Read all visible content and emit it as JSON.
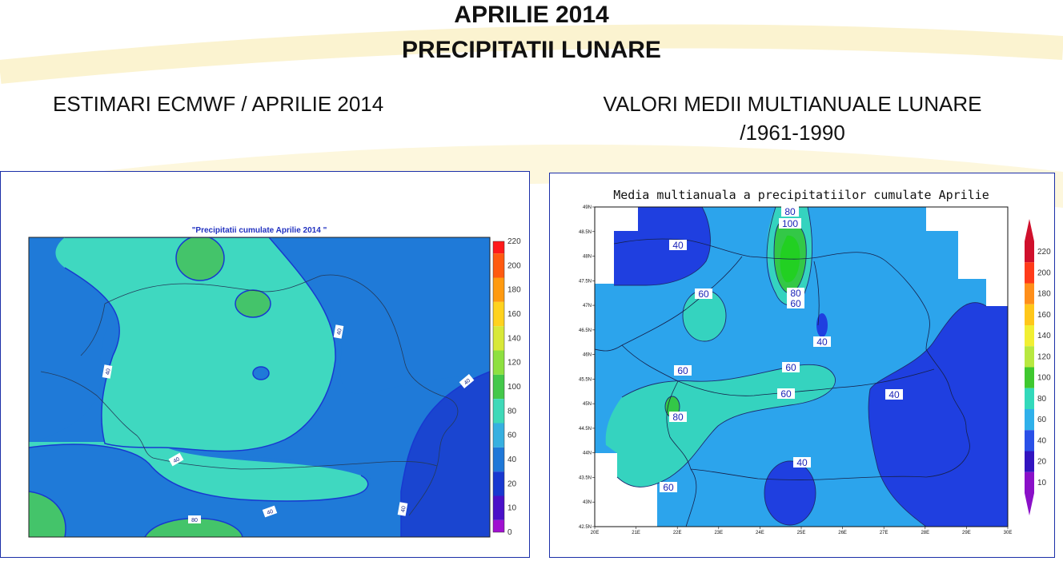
{
  "header": {
    "title_line1": "APRILIE 2014",
    "title_line2": "PRECIPITATII LUNARE"
  },
  "left_panel": {
    "subtitle": "ESTIMARI ECMWF / APRILIE 2014",
    "map_title": "\"Precipitatii cumulate Aprilie 2014 \"",
    "legend": {
      "ticks": [
        "220",
        "200",
        "180",
        "160",
        "140",
        "120",
        "100",
        "80",
        "60",
        "40",
        "20",
        "10",
        "0"
      ],
      "colors": [
        "#ff1a1a",
        "#ff5a10",
        "#ff9a10",
        "#ffd21e",
        "#d8e838",
        "#8ee040",
        "#44c84a",
        "#3fd9b8",
        "#37b0e0",
        "#1f78d8",
        "#1838d0",
        "#4a10c8",
        "#a010d0"
      ]
    },
    "contour_labels": [
      "40",
      "40",
      "40",
      "40",
      "40",
      "40",
      "80"
    ]
  },
  "right_panel": {
    "subtitle_line1": "VALORI MEDII MULTIANUALE LUNARE",
    "subtitle_line2": "/1961-1990",
    "map_title": "Media multianuala a precipitatiilor cumulate Aprilie",
    "legend": {
      "ticks": [
        "220",
        "200",
        "180",
        "160",
        "140",
        "120",
        "100",
        "80",
        "60",
        "40",
        "20",
        "10"
      ],
      "colors": [
        "#d0102c",
        "#ff3b1a",
        "#ff8f1a",
        "#ffc71a",
        "#f1ef33",
        "#b8e840",
        "#3fc82f",
        "#33d9bb",
        "#2fb0ea",
        "#2a50e8",
        "#3214c0",
        "#8a10c8"
      ]
    },
    "x_ticks": [
      "20E",
      "21E",
      "22E",
      "23E",
      "24E",
      "25E",
      "26E",
      "27E",
      "28E",
      "29E",
      "30E"
    ],
    "y_ticks": [
      "49N",
      "48.5N",
      "48N",
      "47.5N",
      "47N",
      "46.5N",
      "46N",
      "45.5N",
      "45N",
      "44.5N",
      "44N",
      "43.5N",
      "43N",
      "42.5N"
    ],
    "contour_labels": [
      "80",
      "100",
      "40",
      "60",
      "80",
      "60",
      "40",
      "60",
      "60",
      "60",
      "40",
      "80",
      "40",
      "60"
    ],
    "colors": {
      "lt40": "#1f3fe0",
      "40to60": "#2ca4ec",
      "60to80": "#35d3bf",
      "gt80": "#33c847",
      "gt100": "#22d022"
    }
  },
  "colors": {
    "panel_border": "#1b2fa8",
    "left_blue": "#1f7ad8",
    "left_cyan": "#3fd8c0",
    "left_deep": "#1a45d0",
    "left_green": "#44c46a"
  }
}
